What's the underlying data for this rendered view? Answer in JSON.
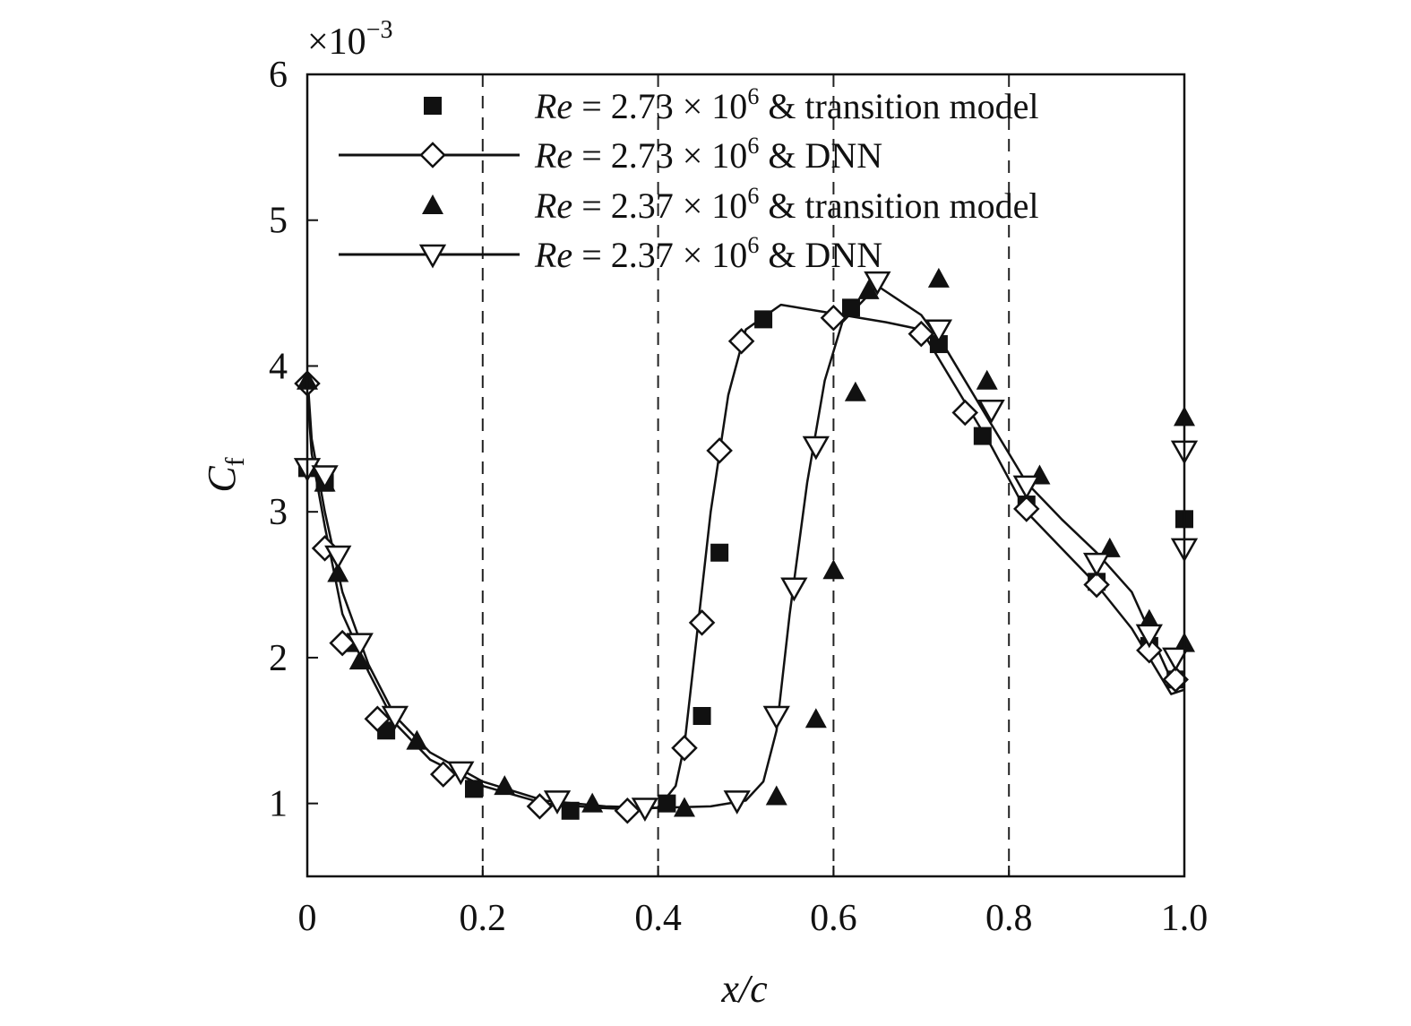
{
  "chart_data": {
    "type": "line",
    "xlabel": "x/c",
    "ylabel": "C",
    "ylabel_subscript": "f",
    "y_multiplier_text": "×10",
    "y_multiplier_exponent": "−3",
    "xlim": [
      0,
      1.0
    ],
    "ylim": [
      0.5,
      6
    ],
    "x_ticks": [
      0,
      0.2,
      0.4,
      0.6,
      0.8,
      1.0
    ],
    "x_tick_labels": [
      "0",
      "0.2",
      "0.4",
      "0.6",
      "0.8",
      "1.0"
    ],
    "y_ticks": [
      1,
      2,
      3,
      4,
      5,
      6
    ],
    "y_tick_labels": [
      "1",
      "2",
      "3",
      "4",
      "5",
      "6"
    ],
    "vertical_dashed_lines": [
      0.2,
      0.4,
      0.6,
      0.8
    ],
    "grid": false,
    "legend_position": "top",
    "legend": [
      {
        "re": "Re",
        "eq": " = 2.73 × 10",
        "exp": "6",
        "tail": " & transition model"
      },
      {
        "re": "Re",
        "eq": " = 2.73 × 10",
        "exp": "6",
        "tail": " & DNN"
      },
      {
        "re": "Re",
        "eq": " = 2.37 × 10",
        "exp": "6",
        "tail": " & transition model"
      },
      {
        "re": "Re",
        "eq": " = 2.37 × 10",
        "exp": "6",
        "tail": " & DNN"
      }
    ],
    "series": [
      {
        "marker": "filled-square",
        "style": "markers",
        "color": "#111111",
        "points": [
          [
            0.0,
            3.3
          ],
          [
            0.02,
            3.2
          ],
          [
            0.05,
            2.1
          ],
          [
            0.09,
            1.5
          ],
          [
            0.19,
            1.1
          ],
          [
            0.3,
            0.95
          ],
          [
            0.41,
            1.0
          ],
          [
            0.45,
            1.6
          ],
          [
            0.47,
            2.72
          ],
          [
            0.52,
            4.32
          ],
          [
            0.62,
            4.4
          ],
          [
            0.72,
            4.15
          ],
          [
            0.77,
            3.52
          ],
          [
            0.82,
            3.05
          ],
          [
            0.9,
            2.52
          ],
          [
            0.96,
            2.08
          ],
          [
            0.99,
            1.85
          ],
          [
            1.0,
            2.95
          ]
        ]
      },
      {
        "marker": "open-diamond",
        "style": "line+markers",
        "color": "#111111",
        "curve": [
          [
            0.0,
            3.82
          ],
          [
            0.005,
            3.4
          ],
          [
            0.02,
            2.9
          ],
          [
            0.04,
            2.3
          ],
          [
            0.07,
            1.9
          ],
          [
            0.1,
            1.55
          ],
          [
            0.14,
            1.3
          ],
          [
            0.2,
            1.12
          ],
          [
            0.27,
            1.0
          ],
          [
            0.33,
            0.97
          ],
          [
            0.37,
            0.96
          ],
          [
            0.4,
            0.97
          ],
          [
            0.42,
            1.12
          ],
          [
            0.43,
            1.4
          ],
          [
            0.445,
            2.2
          ],
          [
            0.46,
            3.0
          ],
          [
            0.48,
            3.8
          ],
          [
            0.5,
            4.25
          ],
          [
            0.54,
            4.42
          ],
          [
            0.6,
            4.36
          ],
          [
            0.66,
            4.3
          ],
          [
            0.7,
            4.25
          ],
          [
            0.74,
            3.85
          ],
          [
            0.78,
            3.45
          ],
          [
            0.82,
            3.0
          ],
          [
            0.86,
            2.75
          ],
          [
            0.9,
            2.5
          ],
          [
            0.94,
            2.2
          ],
          [
            0.97,
            1.9
          ],
          [
            0.985,
            1.75
          ],
          [
            1.0,
            1.78
          ]
        ],
        "points": [
          [
            0.0,
            3.88
          ],
          [
            0.02,
            2.75
          ],
          [
            0.04,
            2.1
          ],
          [
            0.08,
            1.58
          ],
          [
            0.155,
            1.2
          ],
          [
            0.265,
            0.98
          ],
          [
            0.365,
            0.95
          ],
          [
            0.43,
            1.38
          ],
          [
            0.45,
            2.24
          ],
          [
            0.47,
            3.42
          ],
          [
            0.495,
            4.17
          ],
          [
            0.6,
            4.33
          ],
          [
            0.7,
            4.22
          ],
          [
            0.75,
            3.68
          ],
          [
            0.82,
            3.02
          ],
          [
            0.9,
            2.5
          ],
          [
            0.96,
            2.05
          ],
          [
            0.99,
            1.85
          ]
        ]
      },
      {
        "marker": "filled-triangle",
        "style": "markers",
        "color": "#111111",
        "points": [
          [
            0.0,
            3.9
          ],
          [
            0.02,
            3.2
          ],
          [
            0.035,
            2.58
          ],
          [
            0.06,
            1.98
          ],
          [
            0.125,
            1.43
          ],
          [
            0.225,
            1.12
          ],
          [
            0.325,
            1.0
          ],
          [
            0.43,
            0.97
          ],
          [
            0.535,
            1.05
          ],
          [
            0.58,
            1.58
          ],
          [
            0.6,
            2.6
          ],
          [
            0.625,
            3.82
          ],
          [
            0.64,
            4.52
          ],
          [
            0.72,
            4.6
          ],
          [
            0.775,
            3.9
          ],
          [
            0.835,
            3.25
          ],
          [
            0.915,
            2.75
          ],
          [
            0.96,
            2.26
          ],
          [
            1.0,
            3.65
          ],
          [
            1.0,
            2.1
          ]
        ]
      },
      {
        "marker": "open-inverted-triangle",
        "style": "line+markers",
        "color": "#111111",
        "curve": [
          [
            0.0,
            3.95
          ],
          [
            0.005,
            3.5
          ],
          [
            0.02,
            3.0
          ],
          [
            0.04,
            2.45
          ],
          [
            0.07,
            1.95
          ],
          [
            0.1,
            1.6
          ],
          [
            0.14,
            1.35
          ],
          [
            0.2,
            1.15
          ],
          [
            0.27,
            1.02
          ],
          [
            0.34,
            0.98
          ],
          [
            0.4,
            0.97
          ],
          [
            0.46,
            0.98
          ],
          [
            0.5,
            1.02
          ],
          [
            0.52,
            1.15
          ],
          [
            0.535,
            1.5
          ],
          [
            0.55,
            2.3
          ],
          [
            0.57,
            3.2
          ],
          [
            0.59,
            3.9
          ],
          [
            0.61,
            4.3
          ],
          [
            0.65,
            4.55
          ],
          [
            0.7,
            4.35
          ],
          [
            0.73,
            4.1
          ],
          [
            0.77,
            3.7
          ],
          [
            0.82,
            3.2
          ],
          [
            0.86,
            2.95
          ],
          [
            0.9,
            2.72
          ],
          [
            0.94,
            2.45
          ],
          [
            0.97,
            2.05
          ],
          [
            0.985,
            1.85
          ],
          [
            1.0,
            1.85
          ]
        ],
        "points": [
          [
            0.0,
            3.3
          ],
          [
            0.02,
            3.25
          ],
          [
            0.035,
            2.7
          ],
          [
            0.06,
            2.1
          ],
          [
            0.1,
            1.6
          ],
          [
            0.175,
            1.22
          ],
          [
            0.285,
            1.02
          ],
          [
            0.385,
            0.97
          ],
          [
            0.49,
            1.02
          ],
          [
            0.535,
            1.6
          ],
          [
            0.555,
            2.48
          ],
          [
            0.58,
            3.45
          ],
          [
            0.65,
            4.58
          ],
          [
            0.72,
            4.25
          ],
          [
            0.78,
            3.7
          ],
          [
            0.82,
            3.18
          ],
          [
            0.9,
            2.65
          ],
          [
            0.96,
            2.16
          ],
          [
            1.0,
            3.42
          ],
          [
            1.0,
            2.75
          ],
          [
            0.99,
            2.0
          ]
        ]
      }
    ]
  }
}
